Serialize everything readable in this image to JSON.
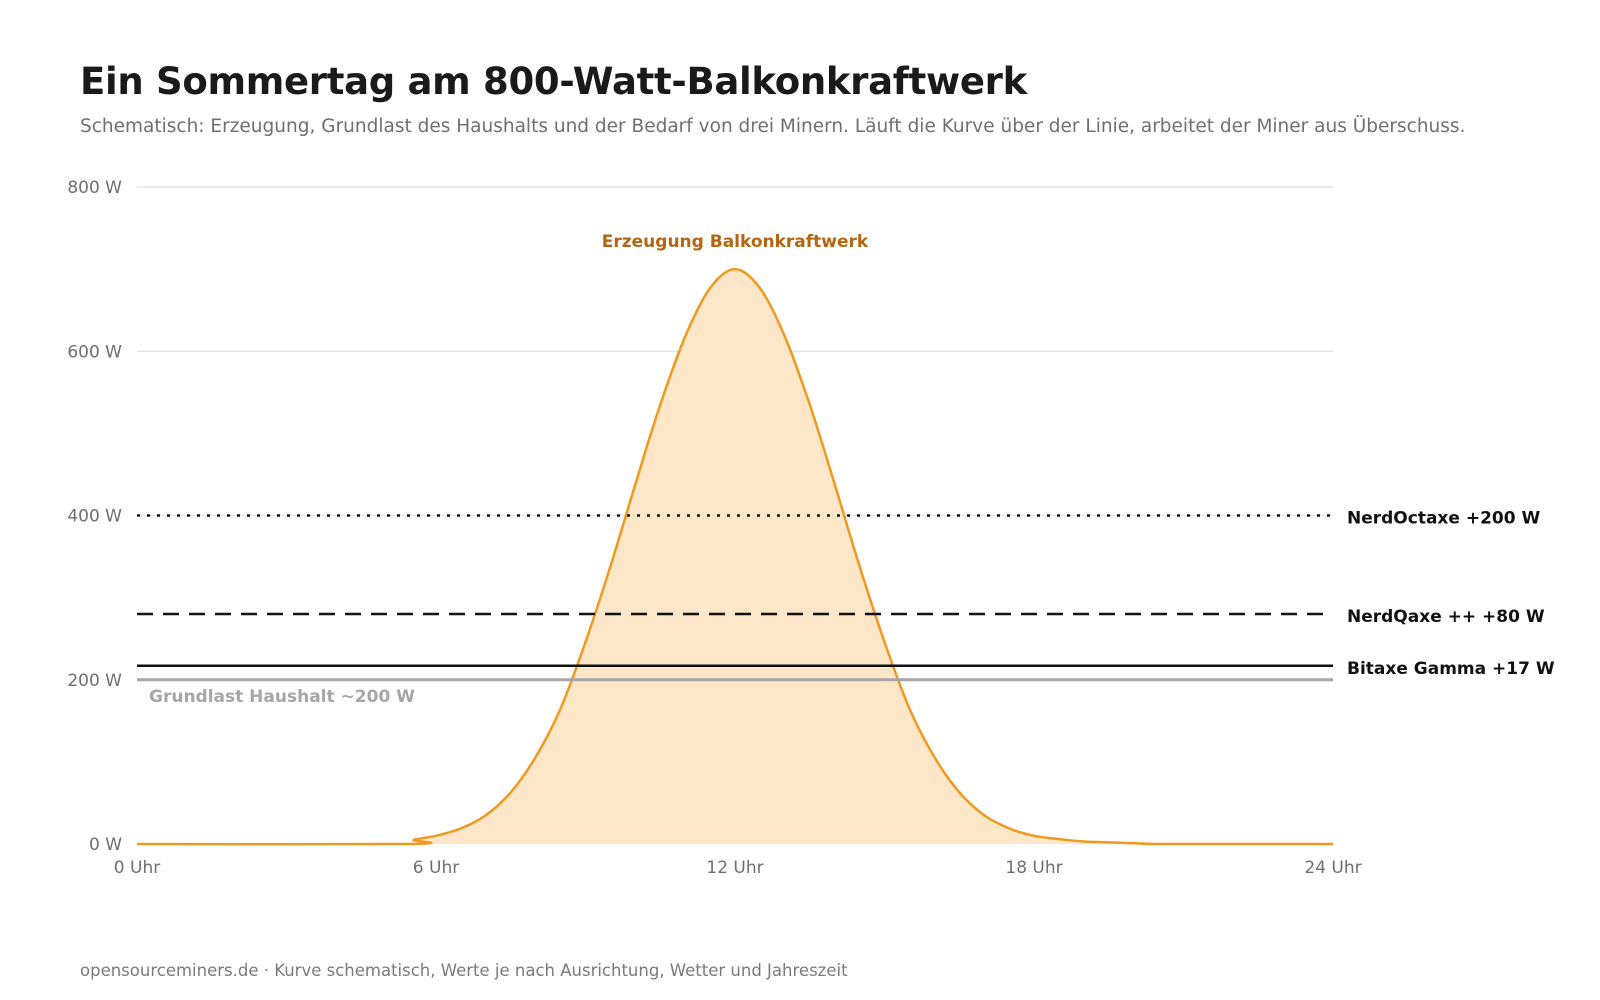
{
  "title": "Ein Sommertag am 800-Watt-Balkonkraftwerk",
  "subtitle": "Schematisch: Erzeugung, Grundlast des Haushalts und der Bedarf von drei Minern. Läuft die Kurve über der Linie, arbeitet der Miner aus Überschuss.",
  "footer": "opensourceminers.de · Kurve schematisch, Werte je nach Ausrichtung, Wetter und Jahreszeit",
  "colors": {
    "generation_line": "#ef9a1e",
    "generation_fill": "#fde7c8",
    "generation_label": "#b5650f",
    "baseload": "#a6a6a6",
    "miners": "#111111",
    "grid": "#e4e4e4",
    "tick_text": "#6f6f6f"
  },
  "chart_data": {
    "type": "area",
    "xlim": [
      0,
      24
    ],
    "ylim": [
      0,
      800
    ],
    "grid": "horizontal",
    "xticks": [
      {
        "value": 0,
        "label": "0 Uhr"
      },
      {
        "value": 6,
        "label": "6 Uhr"
      },
      {
        "value": 12,
        "label": "12 Uhr"
      },
      {
        "value": 18,
        "label": "18 Uhr"
      },
      {
        "value": 24,
        "label": "24 Uhr"
      }
    ],
    "yticks": [
      {
        "value": 0,
        "label": "0 W"
      },
      {
        "value": 200,
        "label": "200 W"
      },
      {
        "value": 400,
        "label": "400 W"
      },
      {
        "value": 600,
        "label": "600 W"
      },
      {
        "value": 800,
        "label": "800 W"
      }
    ],
    "series": [
      {
        "name": "Erzeugung Balkonkraftwerk",
        "x": [
          0,
          5.5,
          5.55,
          6,
          6.5,
          7,
          7.5,
          8,
          8.5,
          9,
          9.5,
          10,
          10.5,
          11,
          11.5,
          12,
          12.5,
          13,
          13.5,
          14,
          14.5,
          15,
          15.5,
          16,
          16.5,
          17,
          17.5,
          18,
          18.5,
          19,
          19.5,
          20,
          20.4,
          20.45,
          24
        ],
        "y": [
          0,
          0,
          5,
          10,
          19,
          35,
          63,
          106,
          165,
          246,
          338,
          438,
          535,
          618,
          677,
          700,
          677,
          618,
          535,
          438,
          338,
          246,
          165,
          106,
          63,
          35,
          19,
          10,
          6,
          3,
          2,
          1,
          0,
          0,
          0
        ]
      }
    ],
    "reference_lines": [
      {
        "name": "Grundlast Haushalt ~200 W",
        "y": 200,
        "style": "solid",
        "color": "#a6a6a6"
      },
      {
        "name": "Bitaxe Gamma +17 W",
        "y": 217,
        "style": "solid",
        "color": "#111111"
      },
      {
        "name": "NerdQaxe ++ +80 W",
        "y": 280,
        "style": "dashed",
        "color": "#111111"
      },
      {
        "name": "NerdOctaxe +200 W",
        "y": 400,
        "style": "dotted",
        "color": "#111111"
      }
    ]
  }
}
